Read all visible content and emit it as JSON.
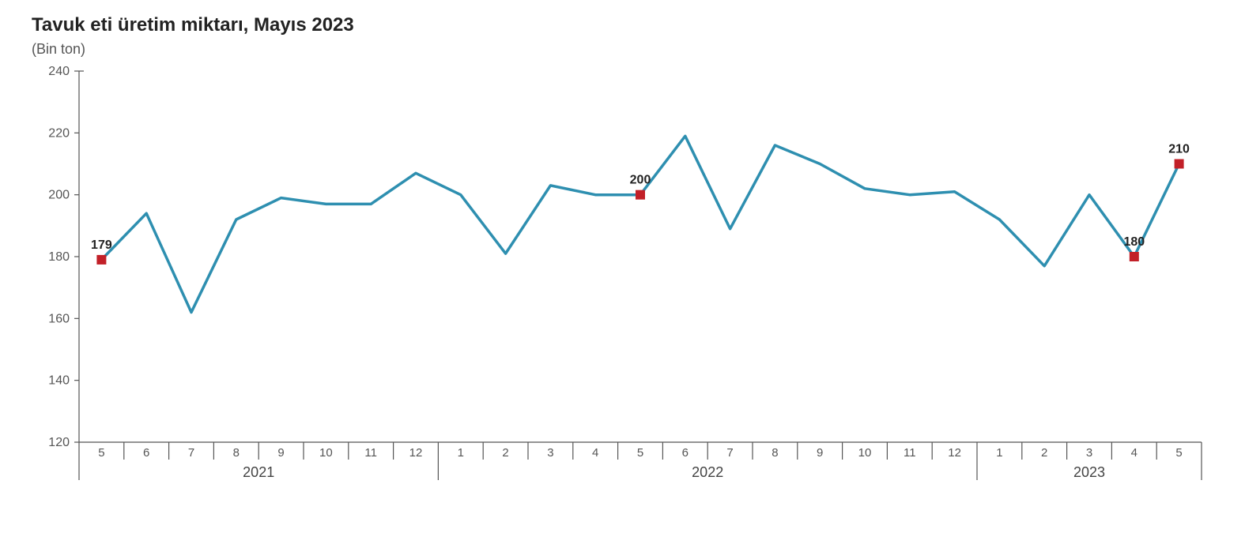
{
  "title": "Tavuk eti üretim miktarı, Mayıs 2023",
  "subtitle": "(Bin ton)",
  "chart": {
    "type": "line",
    "background_color": "#ffffff",
    "line_color": "#2e8fb0",
    "line_width": 3.5,
    "marker_color": "#c22028",
    "marker_size": 6,
    "axis_color": "#555555",
    "axis_width": 1.2,
    "tick_color": "#555555",
    "tick_font_size": 15,
    "ylabel_font_size": 16,
    "ylim": [
      120,
      240
    ],
    "ytick_step": 20,
    "x_labels": [
      "5",
      "6",
      "7",
      "8",
      "9",
      "10",
      "11",
      "12",
      "1",
      "2",
      "3",
      "4",
      "5",
      "6",
      "7",
      "8",
      "9",
      "10",
      "11",
      "12",
      "1",
      "2",
      "3",
      "4",
      "5"
    ],
    "values": [
      179,
      194,
      162,
      192,
      199,
      197,
      197,
      207,
      200,
      181,
      203,
      200,
      200,
      219,
      189,
      216,
      210,
      202,
      200,
      201,
      192,
      177,
      200,
      180,
      210
    ],
    "highlight_points": [
      {
        "index": 0,
        "label": "179",
        "dy": -14
      },
      {
        "index": 12,
        "label": "200",
        "dy": -14
      },
      {
        "index": 23,
        "label": "180",
        "dy": -14
      },
      {
        "index": 24,
        "label": "210",
        "dy": -14
      }
    ],
    "year_groups": [
      {
        "label": "2021",
        "start": 0,
        "end": 7
      },
      {
        "label": "2022",
        "start": 8,
        "end": 19
      },
      {
        "label": "2023",
        "start": 20,
        "end": 24
      }
    ]
  }
}
